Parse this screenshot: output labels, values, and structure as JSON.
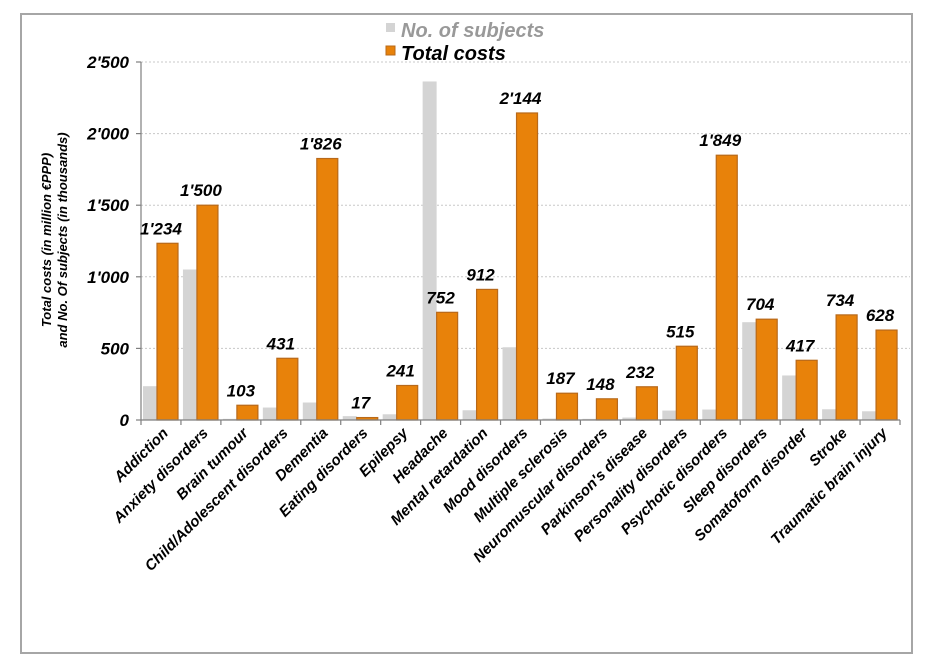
{
  "chart_data": {
    "type": "bar",
    "title": "",
    "xlabel": "",
    "ylabel_line1": "Total costs (in million €PPP)",
    "ylabel_line2": "and No. Of subjects (in thousands)",
    "ylim": [
      0,
      2500
    ],
    "yticks": [
      0,
      500,
      1000,
      1500,
      2000,
      2500
    ],
    "ytick_labels": [
      "0",
      "500",
      "1'000",
      "1'500",
      "2'000",
      "2'500"
    ],
    "grid": true,
    "legend_position": "top-center",
    "categories": [
      "Addiction",
      "Anxiety disorders",
      "Brain tumour",
      "Child/Adolescent disorders",
      "Dementia",
      "Eating disorders",
      "Epilepsy",
      "Headache",
      "Mental retardation",
      "Mood disorders",
      "Multiple sclerosis",
      "Neuromuscular disorders",
      "Parkinson's disease",
      "Personality disorders",
      "Psychotic disorders",
      "Sleep disorders",
      "Somatoform disorder",
      "Stroke",
      "Traumatic brain injury"
    ],
    "series": [
      {
        "name": "No. of subjects",
        "color": "#d4d4d4",
        "label_color": "#999999",
        "values": [
          236,
          1051,
          8,
          87,
          122,
          27,
          40,
          2364,
          68,
          508,
          10,
          8,
          17,
          66,
          73,
          683,
          311,
          75,
          61
        ]
      },
      {
        "name": "Total costs",
        "color": "#e8820a",
        "border_color": "#b8691a",
        "label_color": "#000000",
        "values": [
          1234,
          1500,
          103,
          431,
          1826,
          17,
          241,
          752,
          912,
          2144,
          187,
          148,
          232,
          515,
          1849,
          704,
          417,
          734,
          628
        ],
        "data_labels": [
          "1'234",
          "1'500",
          "103",
          "431",
          "1'826",
          "17",
          "241",
          "752",
          "912",
          "2'144",
          "187",
          "148",
          "232",
          "515",
          "1'849",
          "704",
          "417",
          "734",
          "628"
        ]
      }
    ]
  }
}
